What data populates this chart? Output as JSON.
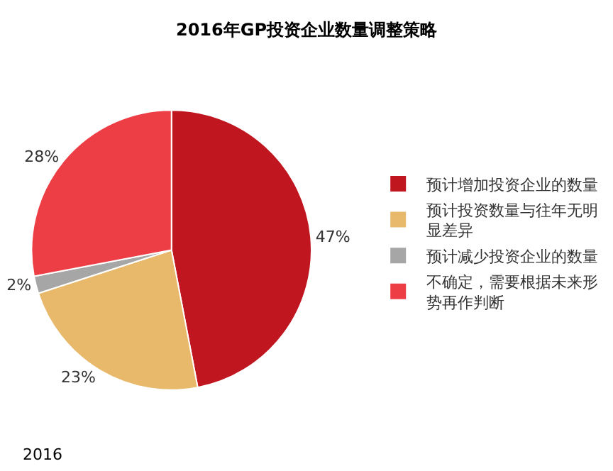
{
  "chart_data": {
    "type": "pie",
    "title": "2016年GP投资企业数量调整策略",
    "categories": [
      "预计增加投资企业的数量",
      "预计投资数量与往年无明显差异",
      "预计减少投资企业的数量",
      "不确定，需要根据未来形势再作判断"
    ],
    "values": [
      47,
      23,
      2,
      28
    ],
    "value_labels": [
      "47%",
      "23%",
      "2%",
      "28%"
    ],
    "colors": [
      "#c0161f",
      "#e8b96a",
      "#a6a6a6",
      "#ee3e45"
    ],
    "legend": "right",
    "annotations": [
      "2016"
    ]
  }
}
